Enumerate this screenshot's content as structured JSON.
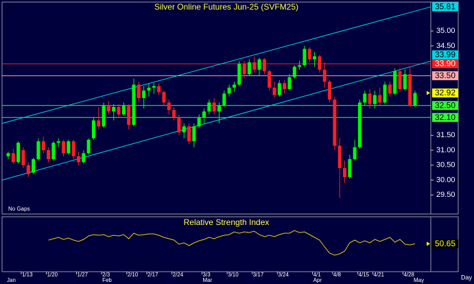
{
  "chart_data": {
    "type": "candlestick",
    "title": "Silver Online Futures Jun-25 (SVFM25)",
    "annotation": "No Gaps",
    "period_label": "Day",
    "categories": [
      null,
      null,
      null,
      "1/13",
      null,
      null,
      null,
      null,
      "1/20",
      null,
      null,
      null,
      null,
      null,
      "1/27",
      null,
      null,
      null,
      null,
      "2/3",
      null,
      null,
      null,
      null,
      "2/10",
      null,
      null,
      null,
      "2/17",
      null,
      null,
      null,
      null,
      "2/24",
      null,
      null,
      null,
      null,
      null,
      "3/3",
      null,
      null,
      null,
      null,
      "3/10",
      null,
      null,
      null,
      null,
      "3/17",
      null,
      null,
      null,
      null,
      "3/24",
      null,
      null,
      null,
      null,
      null,
      null,
      "4/1",
      null,
      null,
      null,
      "4/8",
      null,
      null,
      null,
      null,
      "4/15",
      null,
      null,
      "4/21",
      null,
      null,
      null,
      null,
      null,
      "4/28",
      null,
      null
    ],
    "months": [
      "Jan",
      null,
      null,
      null,
      null,
      null,
      null,
      null,
      null,
      null,
      null,
      null,
      null,
      null,
      null,
      null,
      null,
      null,
      null,
      "Feb",
      null,
      null,
      null,
      null,
      null,
      null,
      null,
      null,
      null,
      null,
      null,
      null,
      null,
      null,
      null,
      null,
      null,
      null,
      null,
      "Mar",
      null,
      null,
      null,
      null,
      null,
      null,
      null,
      null,
      null,
      null,
      null,
      null,
      null,
      null,
      null,
      null,
      null,
      null,
      null,
      null,
      null,
      "Apr",
      null,
      null,
      null,
      null,
      null,
      null,
      null,
      null,
      null,
      null,
      null,
      null,
      null,
      null,
      null,
      null,
      null,
      null,
      null,
      "May"
    ],
    "open": [
      30.8,
      30.9,
      30.6,
      31.0,
      30.5,
      30.25,
      30.7,
      31.3,
      31.0,
      30.7,
      31.25,
      31.3,
      30.9,
      31.3,
      30.8,
      30.6,
      30.9,
      31.4,
      32.0,
      31.8,
      32.5,
      32.3,
      32.45,
      32.2,
      32.5,
      31.85,
      33.2,
      32.75,
      33.0,
      33.1,
      33.15,
      32.95,
      32.6,
      32.35,
      32.1,
      31.6,
      31.8,
      31.3,
      31.8,
      32.1,
      32.3,
      32.6,
      32.3,
      32.5,
      32.9,
      33.1,
      33.2,
      33.9,
      33.55,
      33.95,
      33.7,
      34.05,
      33.65,
      33.1,
      32.85,
      33.25,
      33.05,
      33.45,
      33.8,
      33.85,
      34.4,
      34.05,
      34.15,
      33.7,
      33.3,
      32.7,
      31.15,
      30.4,
      30.1,
      30.7,
      31.1,
      32.6,
      32.9,
      32.55,
      32.85,
      32.6,
      33.2,
      32.9,
      33.65,
      33.05,
      33.55,
      32.5
    ],
    "high": [
      30.95,
      31.05,
      31.3,
      31.1,
      30.6,
      30.75,
      31.4,
      31.45,
      31.1,
      31.3,
      31.4,
      31.35,
      31.35,
      31.35,
      30.95,
      31.0,
      31.4,
      32.1,
      32.45,
      32.6,
      32.65,
      32.55,
      32.55,
      32.6,
      32.55,
      33.4,
      33.3,
      33.15,
      33.25,
      33.25,
      33.25,
      33.0,
      32.7,
      32.45,
      32.2,
      31.9,
      31.9,
      31.9,
      32.2,
      32.4,
      32.7,
      32.75,
      32.6,
      33.0,
      33.2,
      33.3,
      34.0,
      34.0,
      34.05,
      34.15,
      34.1,
      34.1,
      33.7,
      33.3,
      33.35,
      33.35,
      33.55,
      33.85,
      34.0,
      34.5,
      34.45,
      34.3,
      34.2,
      33.95,
      33.35,
      32.8,
      31.4,
      30.65,
      30.85,
      31.35,
      32.7,
      33.0,
      33.05,
      33.0,
      33.1,
      33.3,
      33.3,
      33.75,
      33.75,
      33.7,
      33.8,
      33.0
    ],
    "low": [
      30.7,
      30.55,
      30.55,
      30.4,
      30.1,
      30.2,
      30.65,
      30.9,
      30.6,
      30.65,
      31.1,
      30.8,
      30.85,
      30.7,
      30.5,
      30.55,
      30.85,
      31.35,
      31.7,
      31.75,
      32.2,
      32.0,
      32.1,
      32.15,
      31.7,
      31.8,
      32.6,
      32.4,
      32.8,
      32.9,
      32.85,
      32.5,
      32.2,
      32.0,
      31.5,
      31.4,
      31.2,
      31.1,
      31.75,
      31.9,
      32.2,
      32.2,
      31.9,
      32.45,
      32.8,
      32.95,
      33.15,
      33.4,
      33.5,
      33.6,
      33.5,
      33.55,
      33.0,
      32.75,
      32.8,
      32.9,
      33.0,
      33.4,
      33.7,
      33.8,
      33.95,
      33.8,
      33.6,
      33.1,
      32.6,
      31.0,
      29.4,
      29.9,
      30.05,
      30.65,
      31.05,
      32.5,
      32.4,
      32.4,
      32.5,
      32.55,
      32.8,
      32.85,
      32.95,
      33.0,
      32.45,
      32.45
    ],
    "close": [
      30.9,
      30.6,
      31.25,
      30.5,
      30.2,
      30.7,
      31.3,
      31.0,
      30.7,
      31.25,
      31.3,
      30.9,
      31.3,
      30.8,
      30.6,
      30.9,
      31.35,
      32.0,
      31.8,
      32.5,
      32.3,
      32.45,
      32.2,
      32.5,
      31.85,
      33.2,
      32.75,
      33.0,
      33.1,
      33.15,
      32.95,
      32.6,
      32.35,
      32.1,
      31.6,
      31.8,
      31.3,
      31.8,
      32.1,
      32.3,
      32.6,
      32.3,
      32.5,
      32.9,
      33.1,
      33.2,
      33.9,
      33.55,
      33.95,
      33.7,
      34.05,
      33.65,
      33.1,
      32.85,
      33.25,
      33.05,
      33.45,
      33.8,
      33.85,
      34.4,
      34.05,
      34.15,
      33.7,
      33.3,
      32.7,
      31.15,
      30.4,
      30.1,
      30.7,
      31.1,
      32.6,
      32.9,
      32.55,
      32.85,
      32.6,
      33.2,
      32.9,
      33.65,
      33.05,
      33.55,
      32.5,
      32.92
    ],
    "up_color": "#00ff00",
    "down_color": "#ff2020",
    "last_color": "#ffff00",
    "ylim": [
      28.86,
      35.97
    ],
    "yticks": [
      {
        "value": 29.5,
        "label": "29.50"
      },
      {
        "value": 30,
        "label": "30.00"
      },
      {
        "value": 30.5,
        "label": "30.50"
      },
      {
        "value": 31,
        "label": "31.00"
      },
      {
        "value": 31.5,
        "label": "31.50"
      },
      {
        "value": 34.5,
        "label": "34.50"
      },
      {
        "value": 35,
        "label": "35.00"
      }
    ],
    "levels": [
      {
        "value": 33.9,
        "label": "33.90",
        "color": "#ff2020"
      },
      {
        "value": 33.5,
        "label": "33.50",
        "color": "#ffa8a8"
      },
      {
        "value": 32.5,
        "label": "32.50",
        "color": "#33ff33"
      },
      {
        "value": 32.1,
        "label": "32.10",
        "color": "#33ff33"
      }
    ],
    "trendlines": [
      {
        "color": "#00d8e8",
        "start": 31.9,
        "end": 35.81
      },
      {
        "color": "#00d8e8",
        "start": 30.0,
        "end": 33.99
      }
    ],
    "rsi": {
      "title": "Relative Strength Index",
      "color": "#e8d000",
      "ylim": [
        10,
        90
      ],
      "values": [
        null,
        null,
        null,
        null,
        null,
        null,
        null,
        null,
        56,
        58,
        60,
        57,
        59,
        56,
        54,
        57,
        62,
        64,
        63,
        64,
        61,
        63,
        62,
        64,
        58,
        66,
        63,
        64,
        65,
        65,
        63,
        60,
        58,
        56,
        50,
        52,
        48,
        52,
        55,
        57,
        60,
        58,
        61,
        63,
        64,
        68,
        66,
        68,
        67,
        69,
        64,
        61,
        63,
        61,
        64,
        66,
        66,
        70,
        67,
        68,
        64,
        60,
        56,
        46,
        37,
        34,
        36,
        40,
        52,
        56,
        52,
        55,
        52,
        57,
        54,
        57,
        60,
        53,
        57,
        50,
        49,
        50.65
      ]
    }
  }
}
